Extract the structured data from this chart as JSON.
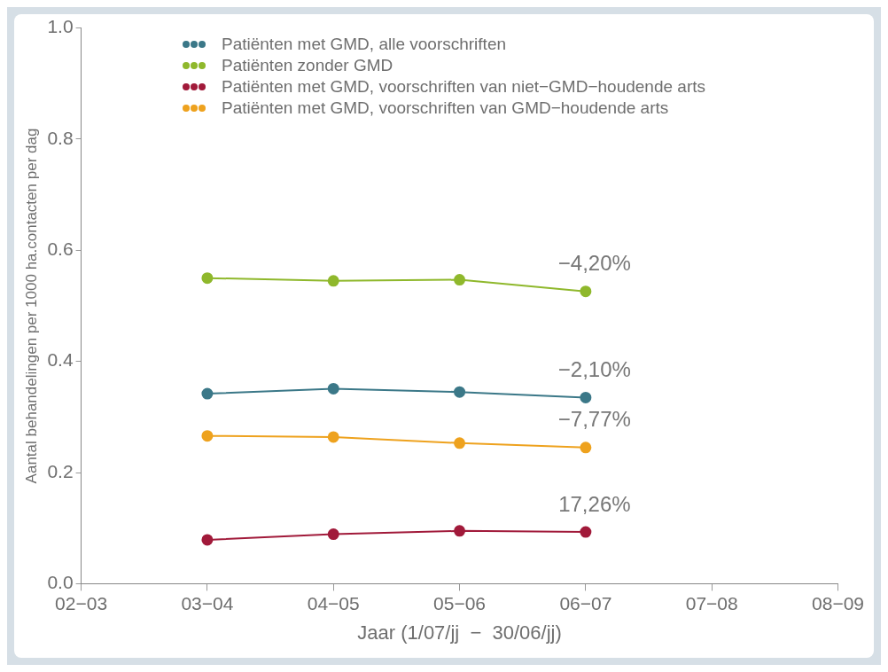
{
  "chart_data": {
    "type": "line",
    "xlabel": "Jaar (1/07/jj  −  30/06/jj)",
    "ylabel": "Aantal behandelingen per 1000 ha.contacten per dag",
    "categories": [
      "02−03",
      "03−04",
      "04−05",
      "05−06",
      "06−07",
      "07−08",
      "08−09"
    ],
    "series": [
      {
        "name": "Patiënten met GMD, alle voorschriften",
        "color": "#3b7888",
        "values": [
          null,
          0.342,
          0.351,
          0.345,
          0.335,
          null,
          null
        ]
      },
      {
        "name": "Patiënten zonder GMD",
        "color": "#8fb82c",
        "values": [
          null,
          0.55,
          0.545,
          0.547,
          0.526,
          null,
          null
        ]
      },
      {
        "name": "Patiënten met GMD, voorschriften van niet−GMD−houdende arts",
        "color": "#a11a3a",
        "values": [
          null,
          0.079,
          0.089,
          0.095,
          0.093,
          null,
          null
        ]
      },
      {
        "name": "Patiënten met GMD, voorschriften van GMD−houdende arts",
        "color": "#eea21e",
        "values": [
          null,
          0.266,
          0.264,
          0.253,
          0.245,
          null,
          null
        ]
      }
    ],
    "ylim": [
      0,
      1
    ],
    "yticks": [
      {
        "value": 0,
        "label": "0.0"
      },
      0.2,
      0.4,
      0.6,
      0.8,
      {
        "value": 1,
        "label": "1.0"
      }
    ],
    "legend": "top left",
    "marker": "circle",
    "line_style": "solid",
    "annotations": [
      {
        "text": "−4,20%",
        "x": "06−07",
        "y": 0.526
      },
      {
        "text": "−2,10%",
        "x": "06−07",
        "y": 0.335
      },
      {
        "text": "−7,77%",
        "x": "06−07",
        "y": 0.245
      },
      {
        "text": "17,26%",
        "x": "06−07",
        "y": 0.093
      }
    ]
  }
}
